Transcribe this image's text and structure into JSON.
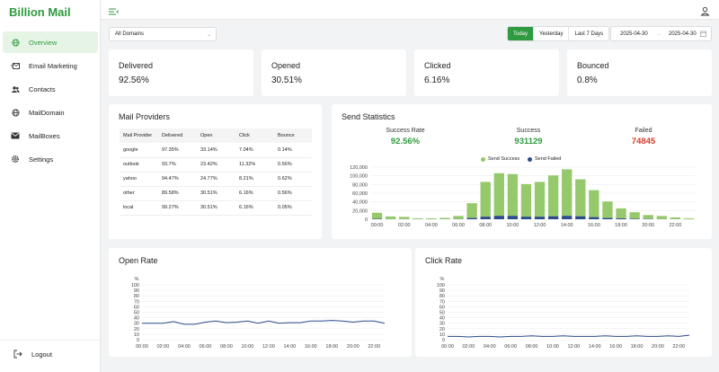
{
  "app": {
    "title": "Billion Mail"
  },
  "sidebar": {
    "items": [
      {
        "label": "Overview",
        "icon": "globe-icon",
        "active": true
      },
      {
        "label": "Email Marketing",
        "icon": "mail-send-icon",
        "active": false
      },
      {
        "label": "Contacts",
        "icon": "contacts-icon",
        "active": false
      },
      {
        "label": "MailDomain",
        "icon": "globe-icon",
        "active": false
      },
      {
        "label": "MailBoxes",
        "icon": "mailbox-icon",
        "active": false
      },
      {
        "label": "Settings",
        "icon": "gear-icon",
        "active": false
      }
    ],
    "logout": {
      "label": "Logout",
      "icon": "logout-icon"
    }
  },
  "filters": {
    "domain": "All Domains",
    "ranges": [
      "Today",
      "Yesterday",
      "Last 7 Days"
    ],
    "active_range": "Today",
    "start_date": "2025-04-30",
    "end_date": "2025-04-30"
  },
  "stats": [
    {
      "label": "Delivered",
      "value": "92.56%"
    },
    {
      "label": "Opened",
      "value": "30.51%"
    },
    {
      "label": "Clicked",
      "value": "6.16%"
    },
    {
      "label": "Bounced",
      "value": "0.8%"
    }
  ],
  "providers": {
    "title": "Mail Providers",
    "columns": [
      "Mail Provider",
      "Delivered",
      "Open",
      "Click",
      "Bounce"
    ],
    "rows": [
      [
        "google",
        "97.35%",
        "33.14%",
        "7.04%",
        "0.14%"
      ],
      [
        "outlook",
        "93.7%",
        "23.42%",
        "11.32%",
        "0.56%"
      ],
      [
        "yahoo",
        "94.47%",
        "24.77%",
        "8.21%",
        "0.62%"
      ],
      [
        "other",
        "89.58%",
        "30.51%",
        "6.16%",
        "0.56%"
      ],
      [
        "local",
        "99.27%",
        "30.51%",
        "6.16%",
        "0.05%"
      ]
    ]
  },
  "send_stats": {
    "title": "Send Statistics",
    "success_rate_label": "Success Rate",
    "success_rate": "92.56%",
    "success_label": "Success",
    "success": "931129",
    "failed_label": "Failed",
    "failed": "74845",
    "colors": {
      "success": "#95c96b",
      "failed": "#2c4a8c",
      "rate": "#2f9a3f",
      "fail_text": "#d33a2c"
    }
  },
  "open_rate": {
    "title": "Open Rate"
  },
  "click_rate": {
    "title": "Click Rate"
  },
  "chart_data": [
    {
      "type": "bar",
      "title": "Send Statistics",
      "series": [
        {
          "name": "Send Success",
          "values": [
            14000,
            6000,
            5000,
            2000,
            2000,
            3000,
            7000,
            34000,
            80000,
            98000,
            96000,
            75000,
            80000,
            94000,
            107000,
            85000,
            62000,
            38000,
            23000,
            15000,
            9000,
            7000,
            4000,
            2000
          ]
        },
        {
          "name": "Send Failed",
          "values": [
            1000,
            500,
            400,
            200,
            200,
            300,
            600,
            3000,
            6000,
            8000,
            8000,
            6000,
            6000,
            7000,
            8000,
            7000,
            5000,
            3000,
            2000,
            1200,
            700,
            500,
            300,
            200
          ]
        }
      ],
      "categories": [
        "00:00",
        "01:00",
        "02:00",
        "03:00",
        "04:00",
        "05:00",
        "06:00",
        "07:00",
        "08:00",
        "09:00",
        "10:00",
        "11:00",
        "12:00",
        "13:00",
        "14:00",
        "15:00",
        "16:00",
        "17:00",
        "18:00",
        "19:00",
        "20:00",
        "21:00",
        "22:00",
        "23:00"
      ],
      "x_tick_labels": [
        "00:00",
        "02:00",
        "04:00",
        "06:00",
        "08:00",
        "10:00",
        "12:00",
        "14:00",
        "16:00",
        "18:00",
        "20:00",
        "22:00"
      ],
      "y_ticks": [
        "0",
        "20,000",
        "40,000",
        "60,000",
        "80,000",
        "100,000",
        "120,000"
      ],
      "ylim": [
        0,
        120000
      ],
      "stacked": true,
      "legend": "top"
    },
    {
      "type": "line",
      "title": "Open Rate",
      "ylabel": "%",
      "ylim": [
        0,
        100
      ],
      "y_ticks": [
        "0",
        "10",
        "20",
        "30",
        "40",
        "50",
        "60",
        "70",
        "80",
        "90",
        "100"
      ],
      "x_tick_labels": [
        "00:00",
        "02:00",
        "04:00",
        "06:00",
        "08:00",
        "10:00",
        "12:00",
        "14:00",
        "16:00",
        "18:00",
        "20:00",
        "22:00"
      ],
      "x": [
        "00:00",
        "01:00",
        "02:00",
        "03:00",
        "04:00",
        "05:00",
        "06:00",
        "07:00",
        "08:00",
        "09:00",
        "10:00",
        "11:00",
        "12:00",
        "13:00",
        "14:00",
        "15:00",
        "16:00",
        "17:00",
        "18:00",
        "19:00",
        "20:00",
        "21:00",
        "22:00",
        "23:00"
      ],
      "values": [
        30,
        30,
        30,
        33,
        28,
        28,
        32,
        34,
        31,
        32,
        34,
        30,
        34,
        30,
        31,
        31,
        34,
        34,
        35,
        34,
        32,
        34,
        34,
        30
      ],
      "color": "#2c4a8c"
    },
    {
      "type": "line",
      "title": "Click Rate",
      "ylabel": "%",
      "ylim": [
        0,
        100
      ],
      "y_ticks": [
        "0",
        "10",
        "20",
        "30",
        "40",
        "50",
        "60",
        "70",
        "80",
        "90",
        "100"
      ],
      "x_tick_labels": [
        "00:00",
        "02:00",
        "04:00",
        "06:00",
        "08:00",
        "10:00",
        "12:00",
        "14:00",
        "16:00",
        "18:00",
        "20:00",
        "22:00"
      ],
      "x": [
        "00:00",
        "01:00",
        "02:00",
        "03:00",
        "04:00",
        "05:00",
        "06:00",
        "07:00",
        "08:00",
        "09:00",
        "10:00",
        "11:00",
        "12:00",
        "13:00",
        "14:00",
        "15:00",
        "16:00",
        "17:00",
        "18:00",
        "19:00",
        "20:00",
        "21:00",
        "22:00",
        "23:00"
      ],
      "values": [
        6,
        6,
        5,
        6,
        6,
        5,
        6,
        6,
        7,
        6,
        6,
        7,
        6,
        6,
        6,
        7,
        6,
        6,
        7,
        6,
        6,
        7,
        6,
        8
      ],
      "color": "#2c4a8c"
    }
  ]
}
